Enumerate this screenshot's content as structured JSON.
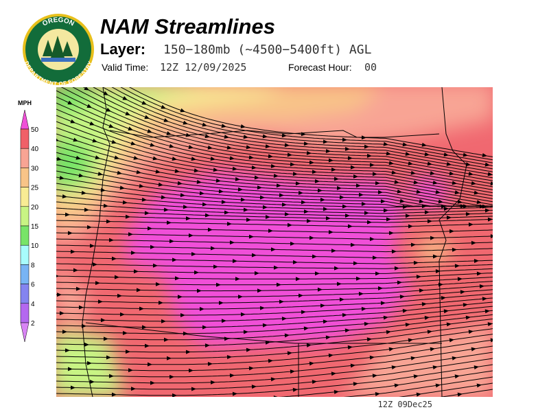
{
  "header": {
    "title": "NAM Streamlines",
    "layer_label": "Layer:",
    "layer": "150−180mb (~4500−5400ft) AGL",
    "valid_label": "Valid Time:",
    "valid_time": "12Z 12/09/2025",
    "forecast_label": "Forecast Hour:",
    "forecast_hour": "00"
  },
  "logo": {
    "top": "OREGON",
    "bottom": "DEPARTMENT OF FORESTRY"
  },
  "legend": {
    "title": "MPH",
    "labels": [
      "50",
      "40",
      "30",
      "25",
      "20",
      "15",
      "10",
      "8",
      "6",
      "4",
      "2"
    ],
    "colors": [
      "#f050d8",
      "#f06068",
      "#f8a494",
      "#f8c488",
      "#f8ec94",
      "#c8f484",
      "#78e468",
      "#a8fcfc",
      "#78b4f4",
      "#8484f0",
      "#b468f0",
      "#d884f4"
    ]
  },
  "footer": {
    "stamp": "12Z 09Dec25"
  }
}
